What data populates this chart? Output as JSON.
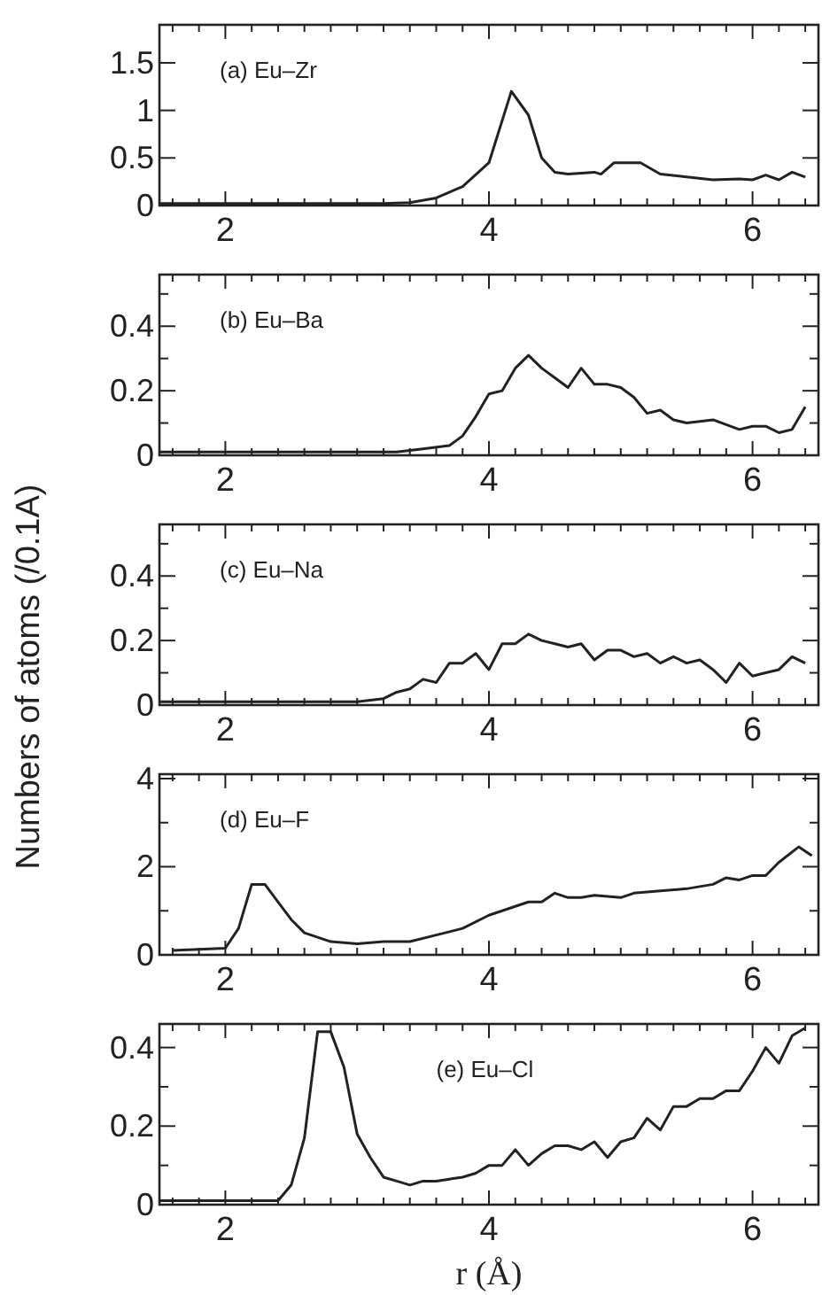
{
  "chart_data": [
    {
      "type": "line",
      "annotations": [
        "(a) Eu–Zr"
      ],
      "x": [
        1.5,
        1.8,
        2.0,
        2.4,
        2.8,
        3.2,
        3.4,
        3.6,
        3.8,
        4.0,
        4.17,
        4.3,
        4.4,
        4.5,
        4.6,
        4.8,
        4.85,
        4.95,
        5.15,
        5.3,
        5.5,
        5.7,
        5.9,
        6.0,
        6.1,
        6.2,
        6.3,
        6.4
      ],
      "series": [
        {
          "color": "#222222",
          "values": [
            0.02,
            0.02,
            0.02,
            0.02,
            0.02,
            0.02,
            0.03,
            0.08,
            0.2,
            0.45,
            1.2,
            0.95,
            0.5,
            0.35,
            0.33,
            0.35,
            0.33,
            0.45,
            0.45,
            0.33,
            0.3,
            0.27,
            0.28,
            0.27,
            0.32,
            0.27,
            0.35,
            0.3
          ]
        }
      ],
      "xlim": [
        1.5,
        6.5
      ],
      "ylim": [
        0,
        1.9
      ],
      "xticks": [
        {
          "value": 1.6,
          "label": null
        },
        {
          "value": 1.8,
          "label": null
        },
        2,
        {
          "value": 2.2,
          "label": null
        },
        {
          "value": 2.4,
          "label": null
        },
        {
          "value": 2.6,
          "label": null
        },
        {
          "value": 2.8,
          "label": null
        },
        {
          "value": 3,
          "label": null
        },
        {
          "value": 3.2,
          "label": null
        },
        {
          "value": 3.4,
          "label": null
        },
        {
          "value": 3.6,
          "label": null
        },
        {
          "value": 3.8,
          "label": null
        },
        4,
        {
          "value": 4.2,
          "label": null
        },
        {
          "value": 4.4,
          "label": null
        },
        {
          "value": 4.6,
          "label": null
        },
        {
          "value": 4.8,
          "label": null
        },
        {
          "value": 5,
          "label": null
        },
        {
          "value": 5.2,
          "label": null
        },
        {
          "value": 5.4,
          "label": null
        },
        {
          "value": 5.6,
          "label": null
        },
        {
          "value": 5.8,
          "label": null
        },
        6,
        {
          "value": 6.2,
          "label": null
        },
        {
          "value": 6.4,
          "label": null
        }
      ],
      "yticks": [
        0,
        0.5,
        1,
        1.5
      ],
      "grid": false,
      "marker": "none",
      "line_style": "solid"
    },
    {
      "type": "line",
      "annotations": [
        "(b) Eu–Ba"
      ],
      "x": [
        1.5,
        2.0,
        2.5,
        3.0,
        3.3,
        3.5,
        3.7,
        3.8,
        3.9,
        4.0,
        4.1,
        4.2,
        4.3,
        4.4,
        4.5,
        4.6,
        4.7,
        4.8,
        4.9,
        5.0,
        5.1,
        5.2,
        5.3,
        5.4,
        5.5,
        5.7,
        5.9,
        6.0,
        6.1,
        6.2,
        6.3,
        6.4
      ],
      "series": [
        {
          "color": "#222222",
          "values": [
            0.01,
            0.01,
            0.01,
            0.01,
            0.01,
            0.02,
            0.03,
            0.06,
            0.12,
            0.19,
            0.2,
            0.27,
            0.31,
            0.27,
            0.24,
            0.21,
            0.27,
            0.22,
            0.22,
            0.21,
            0.18,
            0.13,
            0.14,
            0.11,
            0.1,
            0.11,
            0.08,
            0.09,
            0.09,
            0.07,
            0.08,
            0.15
          ]
        }
      ],
      "xlim": [
        1.5,
        6.5
      ],
      "ylim": [
        0,
        0.56
      ],
      "xticks": [
        {
          "value": 1.6,
          "label": null
        },
        {
          "value": 1.8,
          "label": null
        },
        2,
        {
          "value": 2.2,
          "label": null
        },
        {
          "value": 2.4,
          "label": null
        },
        {
          "value": 2.6,
          "label": null
        },
        {
          "value": 2.8,
          "label": null
        },
        {
          "value": 3,
          "label": null
        },
        {
          "value": 3.2,
          "label": null
        },
        {
          "value": 3.4,
          "label": null
        },
        {
          "value": 3.6,
          "label": null
        },
        {
          "value": 3.8,
          "label": null
        },
        4,
        {
          "value": 4.2,
          "label": null
        },
        {
          "value": 4.4,
          "label": null
        },
        {
          "value": 4.6,
          "label": null
        },
        {
          "value": 4.8,
          "label": null
        },
        {
          "value": 5,
          "label": null
        },
        {
          "value": 5.2,
          "label": null
        },
        {
          "value": 5.4,
          "label": null
        },
        {
          "value": 5.6,
          "label": null
        },
        {
          "value": 5.8,
          "label": null
        },
        6,
        {
          "value": 6.2,
          "label": null
        },
        {
          "value": 6.4,
          "label": null
        }
      ],
      "yticks": [
        0,
        {
          "value": 0.1,
          "label": null
        },
        0.2,
        {
          "value": 0.3,
          "label": null
        },
        0.4,
        {
          "value": 0.5,
          "label": null
        }
      ],
      "grid": false,
      "marker": "none",
      "line_style": "solid"
    },
    {
      "type": "line",
      "ylabel": "Numbers of atoms (/0.1A)",
      "annotations": [
        "(c) Eu–Na"
      ],
      "x": [
        1.5,
        2.0,
        2.5,
        3.0,
        3.2,
        3.3,
        3.4,
        3.5,
        3.6,
        3.7,
        3.8,
        3.9,
        4.0,
        4.1,
        4.2,
        4.3,
        4.4,
        4.5,
        4.6,
        4.7,
        4.8,
        4.9,
        5.0,
        5.1,
        5.2,
        5.3,
        5.4,
        5.5,
        5.6,
        5.7,
        5.8,
        5.9,
        6.0,
        6.1,
        6.2,
        6.3,
        6.4
      ],
      "series": [
        {
          "color": "#222222",
          "values": [
            0.01,
            0.01,
            0.01,
            0.01,
            0.02,
            0.04,
            0.05,
            0.08,
            0.07,
            0.13,
            0.13,
            0.16,
            0.11,
            0.19,
            0.19,
            0.22,
            0.2,
            0.19,
            0.18,
            0.19,
            0.14,
            0.17,
            0.17,
            0.15,
            0.16,
            0.13,
            0.15,
            0.13,
            0.14,
            0.11,
            0.07,
            0.13,
            0.09,
            0.1,
            0.11,
            0.15,
            0.13
          ]
        }
      ],
      "xlim": [
        1.5,
        6.5
      ],
      "ylim": [
        0,
        0.56
      ],
      "xticks": [
        {
          "value": 1.6,
          "label": null
        },
        {
          "value": 1.8,
          "label": null
        },
        2,
        {
          "value": 2.2,
          "label": null
        },
        {
          "value": 2.4,
          "label": null
        },
        {
          "value": 2.6,
          "label": null
        },
        {
          "value": 2.8,
          "label": null
        },
        {
          "value": 3,
          "label": null
        },
        {
          "value": 3.2,
          "label": null
        },
        {
          "value": 3.4,
          "label": null
        },
        {
          "value": 3.6,
          "label": null
        },
        {
          "value": 3.8,
          "label": null
        },
        4,
        {
          "value": 4.2,
          "label": null
        },
        {
          "value": 4.4,
          "label": null
        },
        {
          "value": 4.6,
          "label": null
        },
        {
          "value": 4.8,
          "label": null
        },
        {
          "value": 5,
          "label": null
        },
        {
          "value": 5.2,
          "label": null
        },
        {
          "value": 5.4,
          "label": null
        },
        {
          "value": 5.6,
          "label": null
        },
        {
          "value": 5.8,
          "label": null
        },
        6,
        {
          "value": 6.2,
          "label": null
        },
        {
          "value": 6.4,
          "label": null
        }
      ],
      "yticks": [
        0,
        {
          "value": 0.1,
          "label": null
        },
        0.2,
        {
          "value": 0.3,
          "label": null
        },
        0.4,
        {
          "value": 0.5,
          "label": null
        }
      ],
      "grid": false,
      "marker": "none",
      "line_style": "solid"
    },
    {
      "type": "line",
      "annotations": [
        "(d) Eu–F"
      ],
      "x": [
        1.6,
        2.0,
        2.1,
        2.2,
        2.3,
        2.4,
        2.5,
        2.6,
        2.8,
        3.0,
        3.2,
        3.4,
        3.6,
        3.8,
        4.0,
        4.2,
        4.3,
        4.4,
        4.5,
        4.6,
        4.7,
        4.8,
        5.0,
        5.1,
        5.3,
        5.5,
        5.7,
        5.8,
        5.9,
        6.0,
        6.1,
        6.2,
        6.35,
        6.45
      ],
      "series": [
        {
          "color": "#222222",
          "values": [
            0.1,
            0.15,
            0.6,
            1.6,
            1.6,
            1.2,
            0.8,
            0.5,
            0.3,
            0.25,
            0.3,
            0.3,
            0.45,
            0.6,
            0.9,
            1.1,
            1.2,
            1.2,
            1.4,
            1.3,
            1.3,
            1.35,
            1.3,
            1.4,
            1.45,
            1.5,
            1.6,
            1.75,
            1.7,
            1.8,
            1.8,
            2.1,
            2.45,
            2.25
          ]
        }
      ],
      "xlim": [
        1.5,
        6.5
      ],
      "ylim": [
        0,
        4.1
      ],
      "xticks": [
        {
          "value": 1.6,
          "label": null
        },
        {
          "value": 1.8,
          "label": null
        },
        2,
        {
          "value": 2.2,
          "label": null
        },
        {
          "value": 2.4,
          "label": null
        },
        {
          "value": 2.6,
          "label": null
        },
        {
          "value": 2.8,
          "label": null
        },
        {
          "value": 3,
          "label": null
        },
        {
          "value": 3.2,
          "label": null
        },
        {
          "value": 3.4,
          "label": null
        },
        {
          "value": 3.6,
          "label": null
        },
        {
          "value": 3.8,
          "label": null
        },
        4,
        {
          "value": 4.2,
          "label": null
        },
        {
          "value": 4.4,
          "label": null
        },
        {
          "value": 4.6,
          "label": null
        },
        {
          "value": 4.8,
          "label": null
        },
        {
          "value": 5,
          "label": null
        },
        {
          "value": 5.2,
          "label": null
        },
        {
          "value": 5.4,
          "label": null
        },
        {
          "value": 5.6,
          "label": null
        },
        {
          "value": 5.8,
          "label": null
        },
        6,
        {
          "value": 6.2,
          "label": null
        },
        {
          "value": 6.4,
          "label": null
        }
      ],
      "yticks": [
        0,
        {
          "value": 1,
          "label": null
        },
        2,
        {
          "value": 3,
          "label": null
        },
        4
      ],
      "grid": false,
      "marker": "none",
      "line_style": "solid"
    },
    {
      "type": "line",
      "xlabel": "r (Å)",
      "annotations": [
        "(e) Eu–Cl"
      ],
      "x": [
        1.5,
        2.0,
        2.4,
        2.5,
        2.6,
        2.7,
        2.8,
        2.9,
        3.0,
        3.1,
        3.2,
        3.3,
        3.4,
        3.5,
        3.6,
        3.7,
        3.8,
        3.9,
        4.0,
        4.1,
        4.2,
        4.3,
        4.4,
        4.5,
        4.6,
        4.7,
        4.8,
        4.9,
        5.0,
        5.1,
        5.2,
        5.3,
        5.4,
        5.5,
        5.6,
        5.7,
        5.8,
        5.9,
        6.0,
        6.1,
        6.2,
        6.3,
        6.4
      ],
      "series": [
        {
          "color": "#222222",
          "values": [
            0.01,
            0.01,
            0.01,
            0.05,
            0.17,
            0.44,
            0.44,
            0.35,
            0.18,
            0.12,
            0.07,
            0.06,
            0.05,
            0.06,
            0.06,
            0.065,
            0.07,
            0.08,
            0.1,
            0.1,
            0.14,
            0.1,
            0.13,
            0.15,
            0.15,
            0.14,
            0.16,
            0.12,
            0.16,
            0.17,
            0.22,
            0.19,
            0.25,
            0.25,
            0.27,
            0.27,
            0.29,
            0.29,
            0.34,
            0.4,
            0.36,
            0.43,
            0.45
          ]
        }
      ],
      "xlim": [
        1.5,
        6.5
      ],
      "ylim": [
        0,
        0.46
      ],
      "xticks": [
        {
          "value": 1.6,
          "label": null
        },
        {
          "value": 1.8,
          "label": null
        },
        2,
        {
          "value": 2.2,
          "label": null
        },
        {
          "value": 2.4,
          "label": null
        },
        {
          "value": 2.6,
          "label": null
        },
        {
          "value": 2.8,
          "label": null
        },
        {
          "value": 3,
          "label": null
        },
        {
          "value": 3.2,
          "label": null
        },
        {
          "value": 3.4,
          "label": null
        },
        {
          "value": 3.6,
          "label": null
        },
        {
          "value": 3.8,
          "label": null
        },
        4,
        {
          "value": 4.2,
          "label": null
        },
        {
          "value": 4.4,
          "label": null
        },
        {
          "value": 4.6,
          "label": null
        },
        {
          "value": 4.8,
          "label": null
        },
        {
          "value": 5,
          "label": null
        },
        {
          "value": 5.2,
          "label": null
        },
        {
          "value": 5.4,
          "label": null
        },
        {
          "value": 5.6,
          "label": null
        },
        {
          "value": 5.8,
          "label": null
        },
        6,
        {
          "value": 6.2,
          "label": null
        },
        {
          "value": 6.4,
          "label": null
        }
      ],
      "yticks": [
        0,
        {
          "value": 0.1,
          "label": null
        },
        0.2,
        {
          "value": 0.3,
          "label": null
        },
        0.4
      ],
      "grid": false,
      "marker": "none",
      "line_style": "solid"
    }
  ]
}
